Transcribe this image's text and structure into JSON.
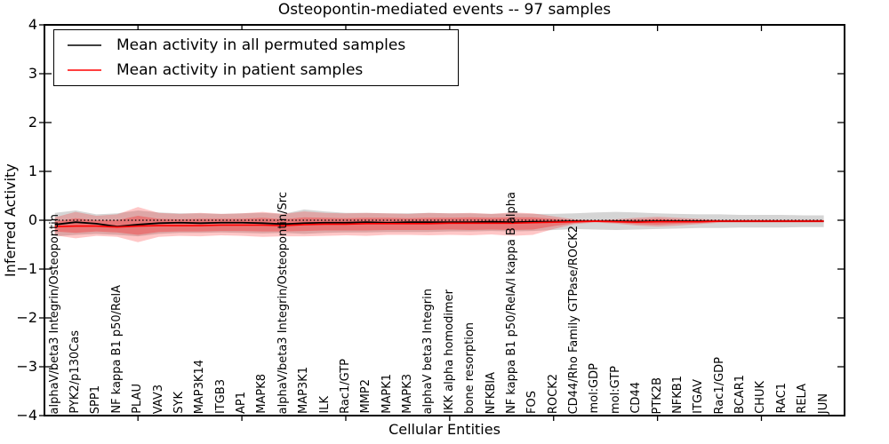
{
  "chart_data": {
    "type": "line",
    "title": "Osteopontin-mediated events -- 97 samples",
    "xlabel": "Cellular Entities",
    "ylabel": "Inferred Activity",
    "ylim": [
      -4,
      4
    ],
    "xlim": [
      -0.5,
      38
    ],
    "legend_position": "upper left",
    "grid": false,
    "yticks": [
      {
        "value": -4,
        "label": "−4"
      },
      {
        "value": -3,
        "label": "−3"
      },
      {
        "value": -2,
        "label": "−2"
      },
      {
        "value": -1,
        "label": "−1"
      },
      {
        "value": 0,
        "label": "0"
      },
      {
        "value": 1,
        "label": "1"
      },
      {
        "value": 2,
        "label": "2"
      },
      {
        "value": 3,
        "label": "3"
      },
      {
        "value": 4,
        "label": "4"
      }
    ],
    "xtick_positions": [
      4,
      9,
      14,
      19,
      24,
      29,
      34
    ],
    "categories": [
      "alphaV/beta3 Integrin/Osteopontin",
      "PYK2/p130Cas",
      "SPP1",
      "NF kappa B1 p50/RelA",
      "PLAU",
      "VAV3",
      "SYK",
      "MAP3K14",
      "ITGB3",
      "AP1",
      "MAPK8",
      "alphaV/beta3 Integrin/Osteopontin/Src",
      "MAP3K1",
      "ILK",
      "Rac1/GTP",
      "MMP2",
      "MAPK1",
      "MAPK3",
      "alphaV beta3 Integrin",
      "IKK alpha homodimer",
      "bone resorption",
      "NFKBIA",
      "NF kappa B1 p50/RelA/I kappa B alpha",
      "FOS",
      "ROCK2",
      "CD44/Rho Family GTPase/ROCK2",
      "mol:GDP",
      "mol:GTP",
      "CD44",
      "PTK2B",
      "NFKB1",
      "ITGAV",
      "Rac1/GDP",
      "BCAR1",
      "CHUK",
      "RAC1",
      "RELA",
      "JUN"
    ],
    "reference_line": {
      "name": "zero-reference",
      "value": 0,
      "color": "#000000",
      "style": "dotted"
    },
    "series": [
      {
        "name": "Mean activity in all permuted samples",
        "color": "#000000",
        "style": "solid",
        "values": [
          -0.09,
          -0.04,
          -0.07,
          -0.13,
          -0.09,
          -0.06,
          -0.05,
          -0.06,
          -0.05,
          -0.05,
          -0.06,
          -0.08,
          -0.06,
          -0.05,
          -0.05,
          -0.04,
          -0.05,
          -0.04,
          -0.04,
          -0.04,
          -0.04,
          -0.03,
          -0.04,
          -0.03,
          -0.03,
          -0.02,
          -0.02,
          -0.02,
          -0.03,
          -0.02,
          -0.02,
          -0.02,
          -0.02,
          -0.02,
          -0.02,
          -0.02,
          -0.02,
          -0.02
        ]
      },
      {
        "name": "Mean activity in patient samples",
        "color": "#ff0000",
        "style": "solid",
        "values": [
          -0.13,
          -0.12,
          -0.12,
          -0.14,
          -0.12,
          -0.11,
          -0.11,
          -0.11,
          -0.1,
          -0.1,
          -0.1,
          -0.11,
          -0.09,
          -0.08,
          -0.08,
          -0.07,
          -0.07,
          -0.07,
          -0.07,
          -0.06,
          -0.06,
          -0.06,
          -0.06,
          -0.05,
          -0.04,
          -0.03,
          -0.02,
          -0.03,
          -0.04,
          -0.03,
          -0.03,
          -0.03,
          -0.02,
          -0.02,
          -0.02,
          -0.02,
          -0.02,
          -0.02
        ]
      }
    ],
    "bands": [
      {
        "name": "permuted-samples-spread",
        "color": "#888888",
        "opacity": 0.35,
        "upper": [
          0.15,
          0.2,
          0.12,
          0.14,
          0.2,
          0.16,
          0.14,
          0.14,
          0.13,
          0.14,
          0.15,
          0.13,
          0.22,
          0.18,
          0.15,
          0.15,
          0.14,
          0.14,
          0.15,
          0.14,
          0.14,
          0.13,
          0.14,
          0.13,
          0.13,
          0.14,
          0.16,
          0.17,
          0.16,
          0.14,
          0.13,
          0.12,
          0.12,
          0.11,
          0.11,
          0.11,
          0.1,
          0.1
        ],
        "lower": [
          -0.33,
          -0.3,
          -0.28,
          -0.3,
          -0.33,
          -0.28,
          -0.26,
          -0.26,
          -0.25,
          -0.26,
          -0.27,
          -0.26,
          -0.28,
          -0.26,
          -0.25,
          -0.25,
          -0.24,
          -0.24,
          -0.24,
          -0.23,
          -0.23,
          -0.22,
          -0.23,
          -0.22,
          -0.2,
          -0.18,
          -0.19,
          -0.2,
          -0.19,
          -0.18,
          -0.17,
          -0.16,
          -0.16,
          -0.15,
          -0.15,
          -0.15,
          -0.14,
          -0.14
        ]
      },
      {
        "name": "patient-samples-spread-outer",
        "color": "#ff0000",
        "opacity": 0.22,
        "upper": [
          0.06,
          0.17,
          0.09,
          0.12,
          0.27,
          0.15,
          0.13,
          0.15,
          0.13,
          0.14,
          0.17,
          0.13,
          0.18,
          0.15,
          0.14,
          0.15,
          0.14,
          0.13,
          0.15,
          0.14,
          0.15,
          0.13,
          0.16,
          0.14,
          0.08,
          0.02,
          0.005,
          0.02,
          0.05,
          0.07,
          0.05,
          0.03,
          0.01,
          0.01,
          0.01,
          0.01,
          0.01,
          0.01
        ],
        "lower": [
          -0.31,
          -0.37,
          -0.32,
          -0.34,
          -0.45,
          -0.34,
          -0.32,
          -0.33,
          -0.31,
          -0.32,
          -0.34,
          -0.33,
          -0.33,
          -0.32,
          -0.31,
          -0.32,
          -0.3,
          -0.3,
          -0.31,
          -0.3,
          -0.31,
          -0.29,
          -0.32,
          -0.3,
          -0.18,
          -0.08,
          -0.045,
          -0.07,
          -0.11,
          -0.13,
          -0.11,
          -0.08,
          -0.05,
          -0.05,
          -0.05,
          -0.05,
          -0.05,
          -0.05
        ]
      },
      {
        "name": "patient-samples-spread-inner",
        "color": "#ff0000",
        "opacity": 0.28,
        "upper": [
          -0.03,
          0.04,
          0.0,
          0.0,
          0.09,
          0.03,
          0.02,
          0.03,
          0.03,
          0.03,
          0.05,
          0.02,
          0.06,
          0.05,
          0.04,
          0.05,
          0.05,
          0.04,
          0.05,
          0.05,
          0.06,
          0.05,
          0.06,
          0.06,
          0.03,
          -0.003,
          -0.006,
          -0.003,
          0.01,
          0.03,
          0.01,
          0.0,
          -0.004,
          -0.004,
          -0.004,
          -0.004,
          -0.004,
          -0.004
        ],
        "lower": [
          -0.23,
          -0.26,
          -0.23,
          -0.25,
          -0.3,
          -0.24,
          -0.23,
          -0.23,
          -0.22,
          -0.22,
          -0.23,
          -0.23,
          -0.22,
          -0.21,
          -0.21,
          -0.21,
          -0.2,
          -0.2,
          -0.2,
          -0.19,
          -0.2,
          -0.19,
          -0.2,
          -0.19,
          -0.12,
          -0.06,
          -0.034,
          -0.05,
          -0.08,
          -0.09,
          -0.07,
          -0.06,
          -0.037,
          -0.037,
          -0.037,
          -0.037,
          -0.037,
          -0.037
        ]
      }
    ]
  }
}
